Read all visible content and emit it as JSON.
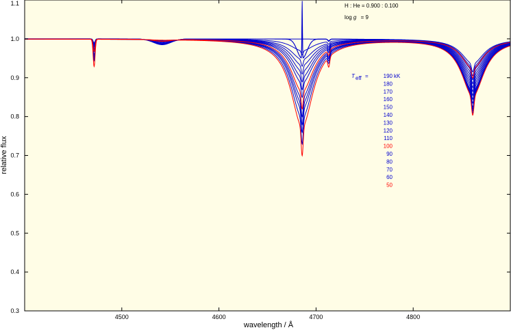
{
  "chart_data": {
    "type": "line",
    "title": "",
    "xlabel": "wavelength / Å",
    "ylabel": "relative flux",
    "xlim": [
      4400,
      4900
    ],
    "ylim": [
      0.3,
      1.1
    ],
    "x_ticks": [
      4500,
      4600,
      4700,
      4800
    ],
    "y_ticks": [
      0.3,
      0.4,
      0.5,
      0.6,
      0.7,
      0.8,
      0.9,
      1.0,
      1.1
    ],
    "x_tick_labels": [
      "4500",
      "4600",
      "4700",
      "4800"
    ],
    "y_tick_labels": [
      "0.3",
      "0.4",
      "0.5",
      "0.6",
      "0.7",
      "0.8",
      "0.9",
      "1.0",
      "1.1"
    ],
    "grid": false,
    "background_color": "#fffde6",
    "annotations": {
      "abundance": "H : He = 0.900 : 0.100",
      "logg_prefix": "log",
      "logg_symbol": "g",
      "logg_value": "= 9",
      "teff_symbol": "T",
      "teff_subscript": "eff",
      "teff_eq": "=",
      "unit": "kK"
    },
    "legend_position": "right-center",
    "line_centers_A": [
      4471.5,
      4541.6,
      4685.7,
      4713.1,
      4861.3
    ],
    "highlight_color": "#ff0000",
    "base_color": "#0000cc",
    "series": [
      {
        "name": "190",
        "teff": 190,
        "color": "#0000cc",
        "min_flux": {
          "4471": 0.99,
          "4541": 0.985,
          "4686": 1.1,
          "4713": 0.996,
          "4861": 0.915
        }
      },
      {
        "name": "180",
        "teff": 180,
        "color": "#0000cc",
        "min_flux": {
          "4471": 0.989,
          "4541": 0.986,
          "4686": 1.05,
          "4713": 0.995,
          "4861": 0.905
        }
      },
      {
        "name": "170",
        "teff": 170,
        "color": "#0000cc",
        "min_flux": {
          "4471": 0.988,
          "4541": 0.986,
          "4686": 1.0,
          "4713": 0.994,
          "4861": 0.895
        }
      },
      {
        "name": "160",
        "teff": 160,
        "color": "#0000cc",
        "min_flux": {
          "4471": 0.987,
          "4541": 0.987,
          "4686": 0.96,
          "4713": 0.993,
          "4861": 0.885
        }
      },
      {
        "name": "150",
        "teff": 150,
        "color": "#0000cc",
        "min_flux": {
          "4471": 0.985,
          "4541": 0.988,
          "4686": 0.93,
          "4713": 0.992,
          "4861": 0.875
        }
      },
      {
        "name": "140",
        "teff": 140,
        "color": "#0000cc",
        "min_flux": {
          "4471": 0.983,
          "4541": 0.989,
          "4686": 0.91,
          "4713": 0.991,
          "4861": 0.865
        }
      },
      {
        "name": "130",
        "teff": 130,
        "color": "#0000cc",
        "min_flux": {
          "4471": 0.98,
          "4541": 0.99,
          "4686": 0.89,
          "4713": 0.99,
          "4861": 0.855
        }
      },
      {
        "name": "120",
        "teff": 120,
        "color": "#0000cc",
        "min_flux": {
          "4471": 0.976,
          "4541": 0.992,
          "4686": 0.87,
          "4713": 0.989,
          "4861": 0.845
        }
      },
      {
        "name": "110",
        "teff": 110,
        "color": "#0000cc",
        "min_flux": {
          "4471": 0.972,
          "4541": 0.994,
          "4686": 0.85,
          "4713": 0.988,
          "4861": 0.835
        }
      },
      {
        "name": "100",
        "teff": 100,
        "color": "#ff0000",
        "min_flux": {
          "4471": 0.968,
          "4541": 0.995,
          "4686": 0.82,
          "4713": 0.986,
          "4861": 0.9
        }
      },
      {
        "name": "90",
        "teff": 90,
        "color": "#0000cc",
        "min_flux": {
          "4471": 0.96,
          "4541": 0.996,
          "4686": 0.8,
          "4713": 0.985,
          "4861": 0.825
        }
      },
      {
        "name": "80",
        "teff": 80,
        "color": "#0000cc",
        "min_flux": {
          "4471": 0.955,
          "4541": 0.997,
          "4686": 0.78,
          "4713": 0.984,
          "4861": 0.82
        }
      },
      {
        "name": "70",
        "teff": 70,
        "color": "#0000cc",
        "min_flux": {
          "4471": 0.95,
          "4541": 0.998,
          "4686": 0.76,
          "4713": 0.982,
          "4861": 0.815
        }
      },
      {
        "name": "60",
        "teff": 60,
        "color": "#0000cc",
        "min_flux": {
          "4471": 0.945,
          "4541": 0.998,
          "4686": 0.73,
          "4713": 0.98,
          "4861": 0.81
        }
      },
      {
        "name": "50",
        "teff": 50,
        "color": "#ff0000",
        "min_flux": {
          "4471": 0.93,
          "4541": 0.999,
          "4686": 0.7,
          "4713": 0.975,
          "4861": 0.805
        }
      }
    ]
  }
}
